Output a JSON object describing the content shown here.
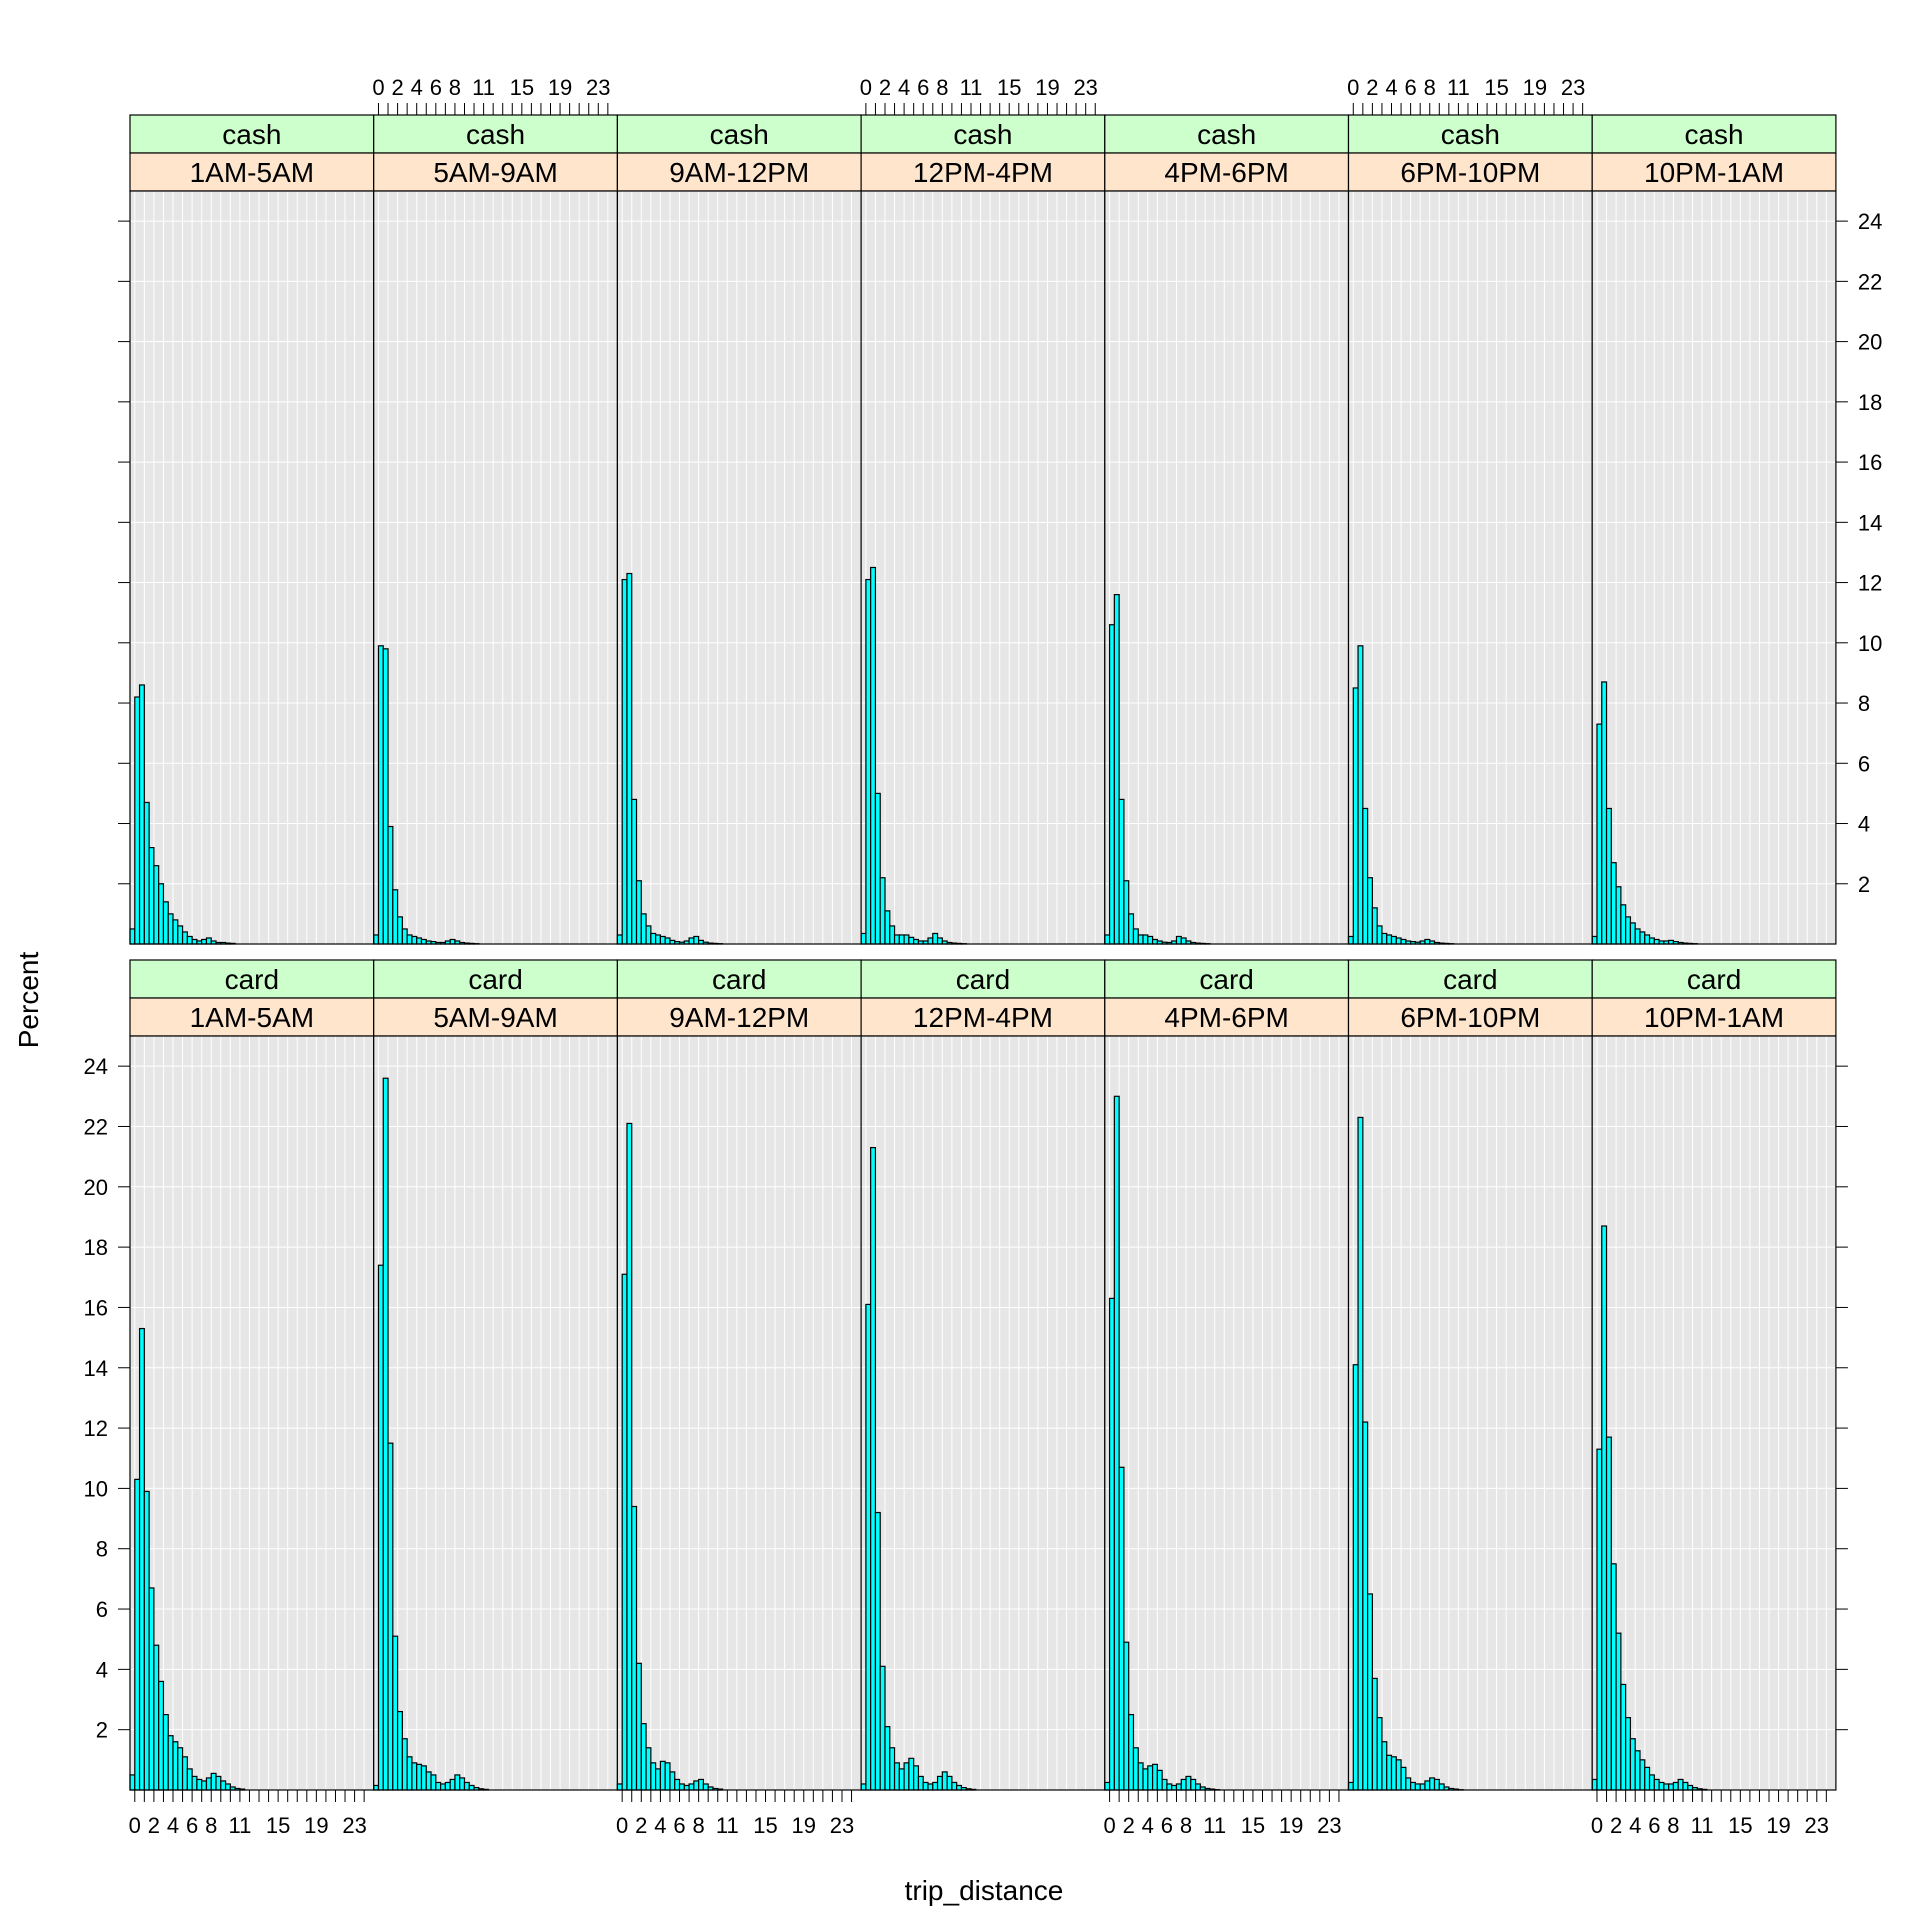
{
  "chart_data": {
    "type": "bar",
    "subtype": "histogram-lattice",
    "title": "",
    "xlabel": "trip_distance",
    "ylabel": "Percent",
    "xlim": [
      -0.5,
      25
    ],
    "ylim": [
      0,
      25
    ],
    "x_tick_labels": [
      "0",
      "2",
      "4",
      "6",
      "8",
      "11",
      "15",
      "19",
      "23"
    ],
    "y_tick_labels": [
      "2",
      "4",
      "6",
      "8",
      "10",
      "12",
      "14",
      "16",
      "18",
      "20",
      "22",
      "24"
    ],
    "bin_width": 0.5,
    "bin_start": -0.5,
    "grid": true,
    "strip_colors": {
      "payment": "#ccffcc",
      "time": "#ffe5cc"
    },
    "bar_fill": "#00ffff",
    "panel_bg": "#e6e6e6",
    "time_periods": [
      "1AM-5AM",
      "5AM-9AM",
      "9AM-12PM",
      "12PM-4PM",
      "4PM-6PM",
      "6PM-10PM",
      "10PM-1AM"
    ],
    "panels": [
      {
        "payment": "cash",
        "time": "1AM-5AM",
        "values": [
          0.5,
          8.2,
          8.6,
          4.7,
          3.2,
          2.6,
          2.0,
          1.4,
          1.0,
          0.8,
          0.6,
          0.4,
          0.25,
          0.15,
          0.1,
          0.15,
          0.2,
          0.1,
          0.05,
          0.05,
          0.03,
          0.02
        ]
      },
      {
        "payment": "cash",
        "time": "5AM-9AM",
        "values": [
          0.3,
          9.9,
          9.8,
          3.9,
          1.8,
          0.9,
          0.5,
          0.3,
          0.25,
          0.2,
          0.15,
          0.1,
          0.08,
          0.05,
          0.05,
          0.1,
          0.15,
          0.1,
          0.05,
          0.03,
          0.02,
          0.01
        ]
      },
      {
        "payment": "cash",
        "time": "9AM-12PM",
        "values": [
          0.3,
          12.1,
          12.3,
          4.8,
          2.1,
          1.0,
          0.6,
          0.35,
          0.3,
          0.25,
          0.2,
          0.12,
          0.08,
          0.06,
          0.1,
          0.2,
          0.25,
          0.12,
          0.06,
          0.03,
          0.02,
          0.01
        ]
      },
      {
        "payment": "cash",
        "time": "12PM-4PM",
        "values": [
          0.35,
          12.1,
          12.5,
          5.0,
          2.2,
          1.1,
          0.6,
          0.3,
          0.3,
          0.3,
          0.22,
          0.15,
          0.1,
          0.1,
          0.2,
          0.35,
          0.2,
          0.1,
          0.05,
          0.03,
          0.02,
          0.01
        ]
      },
      {
        "payment": "cash",
        "time": "4PM-6PM",
        "values": [
          0.3,
          10.6,
          11.6,
          4.8,
          2.1,
          1.0,
          0.5,
          0.3,
          0.3,
          0.25,
          0.15,
          0.1,
          0.06,
          0.05,
          0.1,
          0.25,
          0.2,
          0.1,
          0.05,
          0.03,
          0.02,
          0.01
        ]
      },
      {
        "payment": "cash",
        "time": "6PM-10PM",
        "values": [
          0.25,
          8.5,
          9.9,
          4.5,
          2.2,
          1.2,
          0.6,
          0.35,
          0.3,
          0.25,
          0.2,
          0.15,
          0.1,
          0.08,
          0.06,
          0.1,
          0.15,
          0.1,
          0.05,
          0.03,
          0.02,
          0.01
        ]
      },
      {
        "payment": "cash",
        "time": "10PM-1AM",
        "values": [
          0.25,
          7.3,
          8.7,
          4.5,
          2.7,
          1.9,
          1.3,
          0.9,
          0.7,
          0.5,
          0.4,
          0.3,
          0.2,
          0.15,
          0.1,
          0.1,
          0.12,
          0.08,
          0.05,
          0.03,
          0.02,
          0.01
        ]
      },
      {
        "payment": "card",
        "time": "1AM-5AM",
        "values": [
          0.5,
          10.3,
          15.3,
          9.9,
          6.7,
          4.8,
          3.6,
          2.5,
          1.8,
          1.6,
          1.4,
          1.1,
          0.7,
          0.45,
          0.35,
          0.3,
          0.4,
          0.55,
          0.45,
          0.3,
          0.2,
          0.1,
          0.05,
          0.03
        ]
      },
      {
        "payment": "card",
        "time": "5AM-9AM",
        "values": [
          0.15,
          17.4,
          23.6,
          11.5,
          5.1,
          2.6,
          1.7,
          1.1,
          0.9,
          0.85,
          0.8,
          0.6,
          0.5,
          0.25,
          0.2,
          0.25,
          0.35,
          0.5,
          0.4,
          0.25,
          0.15,
          0.08,
          0.04,
          0.02
        ]
      },
      {
        "payment": "card",
        "time": "9AM-12PM",
        "values": [
          0.2,
          17.1,
          22.1,
          9.4,
          4.2,
          2.2,
          1.4,
          0.9,
          0.7,
          0.95,
          0.9,
          0.6,
          0.35,
          0.2,
          0.15,
          0.2,
          0.3,
          0.35,
          0.2,
          0.1,
          0.05,
          0.03
        ]
      },
      {
        "payment": "card",
        "time": "12PM-4PM",
        "values": [
          0.2,
          16.1,
          21.3,
          9.2,
          4.1,
          2.1,
          1.4,
          0.9,
          0.7,
          0.9,
          1.05,
          0.8,
          0.45,
          0.25,
          0.2,
          0.25,
          0.45,
          0.6,
          0.45,
          0.25,
          0.15,
          0.08,
          0.04,
          0.02
        ]
      },
      {
        "payment": "card",
        "time": "4PM-6PM",
        "values": [
          0.25,
          16.3,
          23.0,
          10.7,
          4.9,
          2.5,
          1.4,
          0.9,
          0.7,
          0.8,
          0.85,
          0.65,
          0.35,
          0.2,
          0.15,
          0.2,
          0.35,
          0.45,
          0.35,
          0.2,
          0.1,
          0.05,
          0.03,
          0.01
        ]
      },
      {
        "payment": "card",
        "time": "6PM-10PM",
        "values": [
          0.25,
          14.1,
          22.3,
          12.2,
          6.5,
          3.7,
          2.4,
          1.6,
          1.15,
          1.1,
          1.0,
          0.75,
          0.4,
          0.25,
          0.2,
          0.2,
          0.3,
          0.4,
          0.35,
          0.2,
          0.1,
          0.05,
          0.03,
          0.01
        ]
      },
      {
        "payment": "card",
        "time": "10PM-1AM",
        "values": [
          0.35,
          11.3,
          18.7,
          11.7,
          7.5,
          5.2,
          3.5,
          2.4,
          1.7,
          1.3,
          1.0,
          0.75,
          0.5,
          0.35,
          0.25,
          0.2,
          0.2,
          0.25,
          0.35,
          0.25,
          0.15,
          0.08,
          0.04,
          0.02
        ]
      }
    ]
  }
}
